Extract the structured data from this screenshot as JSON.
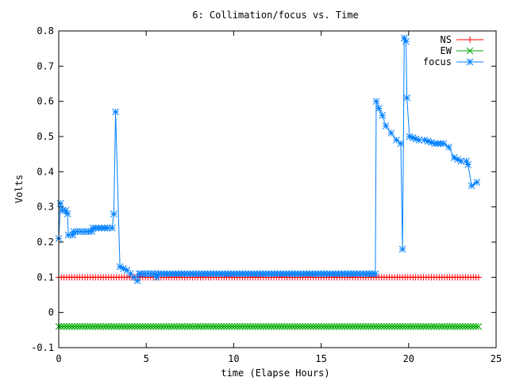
{
  "chart_data": {
    "type": "line",
    "title": "6: Collimation/focus vs. Time",
    "xlabel": "time (Elapse Hours)",
    "ylabel": "Volts",
    "xlim": [
      0,
      25
    ],
    "ylim": [
      -0.1,
      0.8
    ],
    "xticks": [
      0,
      5,
      10,
      15,
      20,
      25
    ],
    "xtick_labels": [
      "0",
      "5",
      "10",
      "15",
      "20",
      "25"
    ],
    "yticks": [
      -0.1,
      0,
      0.1,
      0.2,
      0.3,
      0.4,
      0.5,
      0.6,
      0.7,
      0.8
    ],
    "ytick_labels": [
      "-0.1",
      "0",
      "0.1",
      "0.2",
      "0.3",
      "0.4",
      "0.5",
      "0.6",
      "0.7",
      "0.8"
    ],
    "grid": false,
    "legend_position": "top-right",
    "series": [
      {
        "name": "NS",
        "color": "#ff0000",
        "marker": "plus",
        "x": [
          0.0,
          24.0
        ],
        "y": [
          0.1,
          0.1
        ],
        "sample_step": 0.15
      },
      {
        "name": "EW",
        "color": "#00aa00",
        "marker": "cross",
        "x": [
          0.0,
          24.0
        ],
        "y": [
          -0.04,
          -0.04
        ],
        "sample_step": 0.15
      },
      {
        "name": "focus",
        "color": "#0080ff",
        "marker": "star",
        "x": [
          0.0,
          0.1,
          0.2,
          0.4,
          0.5,
          0.55,
          0.8,
          0.85,
          1.5,
          1.9,
          1.95,
          2.8,
          3.05,
          3.15,
          3.25,
          3.5,
          3.9,
          4.1,
          4.5,
          4.6,
          4.7,
          5.5,
          5.6,
          5.7,
          8.0,
          12.0,
          16.0,
          18.1,
          18.15,
          18.3,
          18.5,
          18.7,
          19.0,
          19.3,
          19.55,
          19.65,
          19.75,
          19.85,
          19.9,
          20.05,
          20.6,
          20.9,
          21.5,
          22.0,
          22.3,
          22.6,
          23.0,
          23.3,
          23.4,
          23.6,
          23.9
        ],
        "y": [
          0.21,
          0.31,
          0.29,
          0.29,
          0.28,
          0.22,
          0.22,
          0.23,
          0.23,
          0.23,
          0.24,
          0.24,
          0.24,
          0.28,
          0.57,
          0.13,
          0.12,
          0.11,
          0.09,
          0.11,
          0.11,
          0.11,
          0.1,
          0.11,
          0.11,
          0.11,
          0.11,
          0.11,
          0.6,
          0.58,
          0.56,
          0.53,
          0.51,
          0.49,
          0.48,
          0.18,
          0.78,
          0.77,
          0.61,
          0.5,
          0.49,
          0.49,
          0.48,
          0.48,
          0.47,
          0.44,
          0.43,
          0.43,
          0.42,
          0.36,
          0.37
        ]
      }
    ]
  }
}
